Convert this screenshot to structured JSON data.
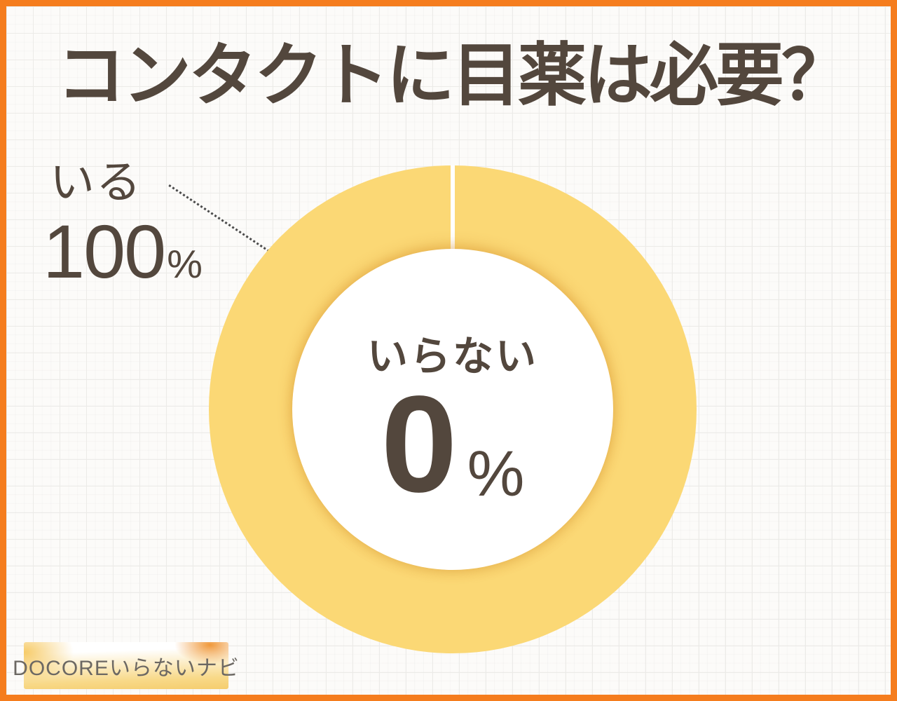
{
  "page": {
    "title": "コンタクトに目薬は必要？"
  },
  "chart_data": {
    "type": "pie",
    "subtype": "donut",
    "title": "コンタクトに目薬は必要？",
    "categories": [
      "いる",
      "いらない"
    ],
    "values": [
      100,
      0
    ],
    "unit": "%",
    "ring_color": "#FBD875",
    "legend_position": "callout-left-and-center",
    "grid": "light squared paper background",
    "annotations": [
      {
        "label": "いる",
        "value": 100,
        "unit": "%",
        "position": "outside-top-left",
        "connector": "dotted-line"
      },
      {
        "label": "いらない",
        "value": 0,
        "unit": "%",
        "position": "donut-center"
      }
    ]
  },
  "callout": {
    "label": "いる",
    "value": "100",
    "unit": "%"
  },
  "center": {
    "label": "いらない",
    "value": "0",
    "unit": "%"
  },
  "footer": {
    "brand_label": "DOCOREいらないナビ"
  },
  "colors": {
    "frame_border_orange": "#F57D1E",
    "donut_yellow": "#FBD875",
    "text_dark_brown": "#53473D",
    "dotted_line_gray": "#4B4B4B",
    "badge_orange": "#EF9330",
    "badge_gold": "#F6C85F",
    "background": "#FCFBF9"
  }
}
